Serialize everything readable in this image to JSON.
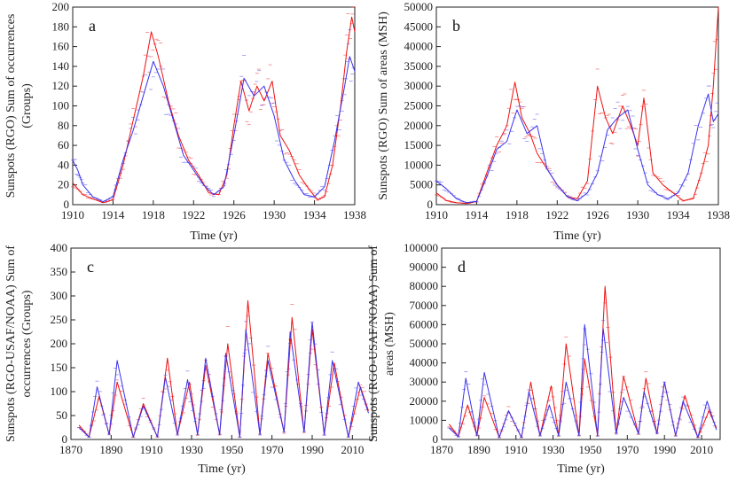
{
  "colors": {
    "red_series": "#ee1111",
    "blue_series": "#3a32ee",
    "axis": "#222222"
  },
  "chart_data": [
    {
      "panel": "a",
      "type": "line",
      "xlabel": "Time (yr)",
      "ylabel_lines": [
        "Sunspots (RGO) Sum of occurrences",
        "(Groups)"
      ],
      "xlim": [
        1910,
        1938
      ],
      "ylim": [
        0,
        200
      ],
      "xticks": [
        1910,
        1914,
        1918,
        1922,
        1926,
        1930,
        1934,
        1938
      ],
      "yticks": [
        0,
        20,
        40,
        60,
        80,
        100,
        120,
        140,
        160,
        180,
        200
      ],
      "series": [
        {
          "name": "red",
          "color": "red_series",
          "x": [
            1910,
            1911,
            1912,
            1913,
            1914,
            1915,
            1916,
            1917,
            1917.8,
            1918.5,
            1919.5,
            1920.5,
            1921.5,
            1922.5,
            1923.5,
            1924.5,
            1925.3,
            1926,
            1926.7,
            1927.5,
            1928.3,
            1929,
            1929.8,
            1930.6,
            1931.5,
            1932.5,
            1933.5,
            1934.3,
            1935,
            1935.8,
            1936.6,
            1937.2,
            1937.7,
            1938
          ],
          "values": [
            22,
            10,
            6,
            2,
            5,
            40,
            85,
            130,
            175,
            150,
            105,
            70,
            45,
            30,
            12,
            10,
            30,
            80,
            125,
            95,
            120,
            105,
            125,
            70,
            55,
            30,
            15,
            5,
            8,
            40,
            100,
            155,
            190,
            175
          ]
        },
        {
          "name": "blue",
          "color": "blue_series",
          "x": [
            1910,
            1910.5,
            1911,
            1912,
            1913,
            1914,
            1915,
            1916,
            1917,
            1918,
            1919,
            1920,
            1921,
            1922,
            1923,
            1924,
            1925,
            1926,
            1927,
            1928,
            1929,
            1930,
            1931,
            1932,
            1933,
            1934,
            1935,
            1936,
            1937,
            1937.5,
            1938
          ],
          "values": [
            45,
            35,
            20,
            8,
            3,
            8,
            45,
            75,
            110,
            145,
            120,
            85,
            50,
            35,
            20,
            10,
            18,
            70,
            128,
            110,
            120,
            90,
            45,
            25,
            10,
            8,
            18,
            65,
            120,
            150,
            135
          ]
        }
      ]
    },
    {
      "panel": "b",
      "type": "line",
      "xlabel": "Time (yr)",
      "ylabel_lines": [
        "Sunspots (RGO) Sum of areas (MSH)"
      ],
      "xlim": [
        1910,
        1938
      ],
      "ylim": [
        0,
        50000
      ],
      "xticks": [
        1910,
        1914,
        1918,
        1922,
        1926,
        1930,
        1934,
        1938
      ],
      "yticks": [
        0,
        5000,
        10000,
        15000,
        20000,
        25000,
        30000,
        35000,
        40000,
        45000,
        50000
      ],
      "series": [
        {
          "name": "red",
          "color": "red_series",
          "x": [
            1910,
            1911,
            1912,
            1913,
            1914,
            1915,
            1916,
            1917,
            1917.8,
            1918.5,
            1919.3,
            1920,
            1921,
            1922,
            1923,
            1924,
            1925,
            1926,
            1926.8,
            1927.5,
            1928.5,
            1929.3,
            1930,
            1930.6,
            1931.5,
            1932.5,
            1933.5,
            1934.5,
            1935.5,
            1936.3,
            1937,
            1937.5,
            1938
          ],
          "values": [
            3000,
            1000,
            500,
            300,
            800,
            8000,
            15000,
            20000,
            31000,
            22000,
            18000,
            13000,
            9000,
            5000,
            2000,
            1500,
            6000,
            30000,
            22000,
            18000,
            25000,
            20000,
            15000,
            27000,
            8000,
            5000,
            3000,
            1000,
            1500,
            8000,
            15000,
            30000,
            50000
          ]
        },
        {
          "name": "blue",
          "color": "blue_series",
          "x": [
            1910,
            1911,
            1912,
            1913,
            1914,
            1915,
            1916,
            1917,
            1918,
            1919,
            1920,
            1921,
            1922,
            1923,
            1924,
            1925,
            1926,
            1927,
            1928,
            1929,
            1930,
            1931,
            1932,
            1933,
            1934,
            1935,
            1936,
            1937,
            1937.5,
            1938
          ],
          "values": [
            6000,
            4000,
            1500,
            500,
            800,
            7000,
            14000,
            16000,
            24000,
            18000,
            20000,
            9000,
            5000,
            2000,
            1000,
            3000,
            8000,
            19000,
            22000,
            24000,
            14000,
            5000,
            2500,
            1500,
            3000,
            8000,
            20000,
            28000,
            21000,
            23000
          ]
        }
      ]
    },
    {
      "panel": "c",
      "type": "line",
      "xlabel": "Time (yr)",
      "ylabel_lines": [
        "Sunspots (RGO-USAF/NOAA) Sum of",
        "occurrences (Groups)"
      ],
      "xlim": [
        1870,
        2020
      ],
      "ylim": [
        0,
        400
      ],
      "xticks": [
        1870,
        1890,
        1910,
        1930,
        1950,
        1970,
        1990,
        2010
      ],
      "yticks": [
        0,
        50,
        100,
        150,
        200,
        250,
        300,
        350,
        400
      ],
      "series": [
        {
          "name": "red",
          "color": "red_series",
          "x": [
            1874,
            1879,
            1884,
            1889,
            1893,
            1901,
            1906,
            1913,
            1918,
            1923,
            1929,
            1933,
            1937,
            1944,
            1948,
            1954,
            1958,
            1964,
            1968,
            1976,
            1980,
            1986,
            1990,
            1996,
            2001,
            2008,
            2014,
            2018
          ],
          "values": [
            30,
            5,
            90,
            10,
            120,
            5,
            75,
            5,
            170,
            10,
            120,
            10,
            155,
            10,
            200,
            5,
            290,
            10,
            180,
            15,
            255,
            15,
            230,
            10,
            160,
            5,
            110,
            60
          ]
        },
        {
          "name": "blue",
          "color": "blue_series",
          "x": [
            1874,
            1879,
            1883,
            1889,
            1893,
            1901,
            1906,
            1913,
            1917,
            1923,
            1928,
            1933,
            1937,
            1944,
            1947,
            1954,
            1957,
            1964,
            1968,
            1976,
            1979,
            1986,
            1990,
            1996,
            2000,
            2008,
            2013,
            2018
          ],
          "values": [
            25,
            5,
            110,
            10,
            165,
            5,
            70,
            5,
            130,
            10,
            125,
            10,
            170,
            10,
            180,
            5,
            230,
            10,
            165,
            15,
            225,
            15,
            245,
            10,
            165,
            5,
            120,
            55
          ]
        }
      ]
    },
    {
      "panel": "d",
      "type": "line",
      "xlabel": "Time (yr)",
      "ylabel_lines": [
        "Sunspots (RGO-USAF/NOAA) Sum of",
        "areas (MSH)"
      ],
      "xlim": [
        1870,
        2020
      ],
      "ylim": [
        0,
        100000
      ],
      "xticks": [
        1870,
        1890,
        1910,
        1930,
        1950,
        1970,
        1990,
        2010
      ],
      "yticks": [
        0,
        10000,
        20000,
        30000,
        40000,
        50000,
        60000,
        70000,
        80000,
        90000,
        100000
      ],
      "series": [
        {
          "name": "red",
          "color": "red_series",
          "x": [
            1874,
            1879,
            1884,
            1889,
            1893,
            1901,
            1906,
            1913,
            1918,
            1923,
            1929,
            1933,
            1937,
            1944,
            1947,
            1954,
            1958,
            1964,
            1968,
            1976,
            1980,
            1986,
            1990,
            1996,
            2001,
            2008,
            2014,
            2018
          ],
          "values": [
            8000,
            1500,
            18000,
            2000,
            22000,
            1000,
            15000,
            1000,
            30000,
            2000,
            28000,
            2000,
            50000,
            2000,
            42000,
            2000,
            80000,
            3000,
            33000,
            3000,
            32000,
            3000,
            30000,
            2000,
            23000,
            1000,
            15000,
            6000
          ]
        },
        {
          "name": "blue",
          "color": "blue_series",
          "x": [
            1874,
            1879,
            1883,
            1889,
            1893,
            1901,
            1906,
            1913,
            1917,
            1923,
            1928,
            1933,
            1937,
            1944,
            1947,
            1954,
            1957,
            1964,
            1968,
            1976,
            1979,
            1986,
            1990,
            1996,
            2000,
            2008,
            2013,
            2018
          ],
          "values": [
            6000,
            1500,
            32000,
            2000,
            35000,
            1000,
            15000,
            1000,
            25000,
            2000,
            18000,
            2000,
            30000,
            2000,
            60000,
            2000,
            58000,
            3000,
            22000,
            3000,
            25000,
            3000,
            30000,
            2000,
            20000,
            1000,
            20000,
            5000
          ]
        }
      ]
    }
  ]
}
